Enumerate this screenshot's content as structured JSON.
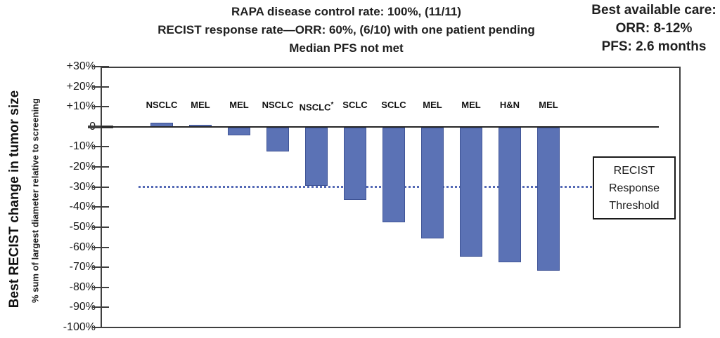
{
  "header": {
    "title_lines": [
      "RAPA disease control rate: 100%, (11/11)",
      "RECIST response rate—ORR: 60%, (6/10) with one patient pending",
      "Median PFS not met"
    ],
    "best_care_lines": [
      "Best available care:",
      "ORR: 8-12%",
      "PFS: 2.6 months"
    ]
  },
  "y_axis": {
    "label_main": "Best RECIST change in tumor size",
    "label_sub": "% sum of largest diameter relative to screening",
    "ticks": [
      "+30%",
      "+20%",
      "+10%",
      "0",
      "-10%",
      "-20%",
      "-30%",
      "-40%",
      "-50%",
      "-60%",
      "-70%",
      "-80%",
      "-90%",
      "-100%"
    ]
  },
  "threshold_box": {
    "lines": [
      "RECIST",
      "Response",
      "Threshold"
    ]
  },
  "colors": {
    "bar_fill": "#5b72b5",
    "bar_border": "#3f5496",
    "dotted_line": "#5469b5",
    "axis": "#3f3f3f"
  },
  "chart_data": {
    "type": "bar",
    "categories": [
      "NSCLC",
      "MEL",
      "MEL",
      "NSCLC",
      "NSCLC*",
      "SCLC",
      "SCLC",
      "MEL",
      "MEL",
      "H&N",
      "MEL"
    ],
    "values": [
      2,
      1,
      -4,
      -12,
      -29,
      -36,
      -47,
      -55,
      -64,
      -67,
      -71
    ],
    "title": "RAPA disease control rate: 100%, (11/11); RECIST response rate—ORR: 60%, (6/10) with one patient pending; Median PFS not met",
    "xlabel": "",
    "ylabel": "Best RECIST change in tumor size — % sum of largest diameter relative to screening",
    "ylim": [
      -100,
      30
    ],
    "ytick_interval": 10,
    "threshold_line_y": -30,
    "threshold_line_style": "dotted",
    "annotation": "RECIST Response Threshold",
    "legend": "none",
    "grid": false
  }
}
